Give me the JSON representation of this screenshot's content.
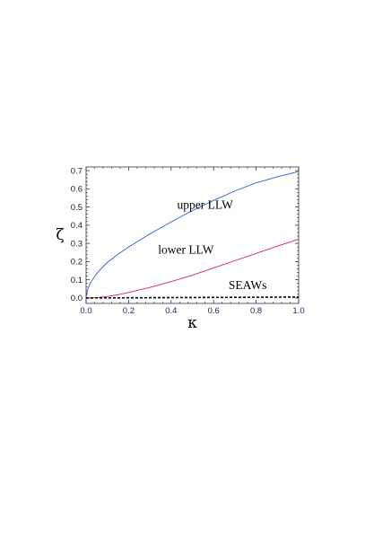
{
  "chart_data": {
    "type": "line",
    "xlabel": "κ",
    "ylabel": "ζ",
    "xlim": [
      0.0,
      1.0
    ],
    "ylim": [
      -0.03,
      0.72
    ],
    "xticks": [
      "0.0",
      "0.2",
      "0.4",
      "0.6",
      "0.8",
      "1.0"
    ],
    "yticks": [
      "0.0",
      "0.1",
      "0.2",
      "0.3",
      "0.4",
      "0.5",
      "0.6",
      "0.7"
    ],
    "grid": false,
    "legend": "none",
    "series": [
      {
        "name": "upper LLW",
        "color": "#3355dd",
        "style": "solid",
        "x": [
          0.0,
          0.005,
          0.01,
          0.02,
          0.04,
          0.06,
          0.08,
          0.1,
          0.15,
          0.2,
          0.3,
          0.4,
          0.5,
          0.6,
          0.7,
          0.8,
          0.9,
          1.0
        ],
        "y": [
          0.0,
          0.035,
          0.055,
          0.082,
          0.118,
          0.148,
          0.172,
          0.195,
          0.24,
          0.28,
          0.352,
          0.418,
          0.48,
          0.536,
          0.588,
          0.633,
          0.666,
          0.695
        ]
      },
      {
        "name": "lower LLW",
        "color": "#e0224a",
        "style": "solid",
        "x": [
          0.0,
          0.05,
          0.1,
          0.15,
          0.2,
          0.3,
          0.4,
          0.5,
          0.6,
          0.7,
          0.8,
          0.9,
          1.0
        ],
        "y": [
          0.0,
          0.002,
          0.008,
          0.018,
          0.03,
          0.058,
          0.09,
          0.125,
          0.165,
          0.205,
          0.245,
          0.285,
          0.323
        ]
      },
      {
        "name": "SEAWs",
        "color": "#000000",
        "style": "dashed",
        "x": [
          0.0,
          0.2,
          0.4,
          0.6,
          0.8,
          1.0
        ],
        "y": [
          0.0,
          0.001,
          0.002,
          0.003,
          0.004,
          0.005
        ]
      }
    ],
    "annotations": [
      {
        "text": "upper LLW",
        "x": 0.56,
        "y": 0.49
      },
      {
        "text": "lower LLW",
        "x": 0.47,
        "y": 0.245
      },
      {
        "text": "SEAWs",
        "x": 0.76,
        "y": 0.05
      }
    ]
  }
}
